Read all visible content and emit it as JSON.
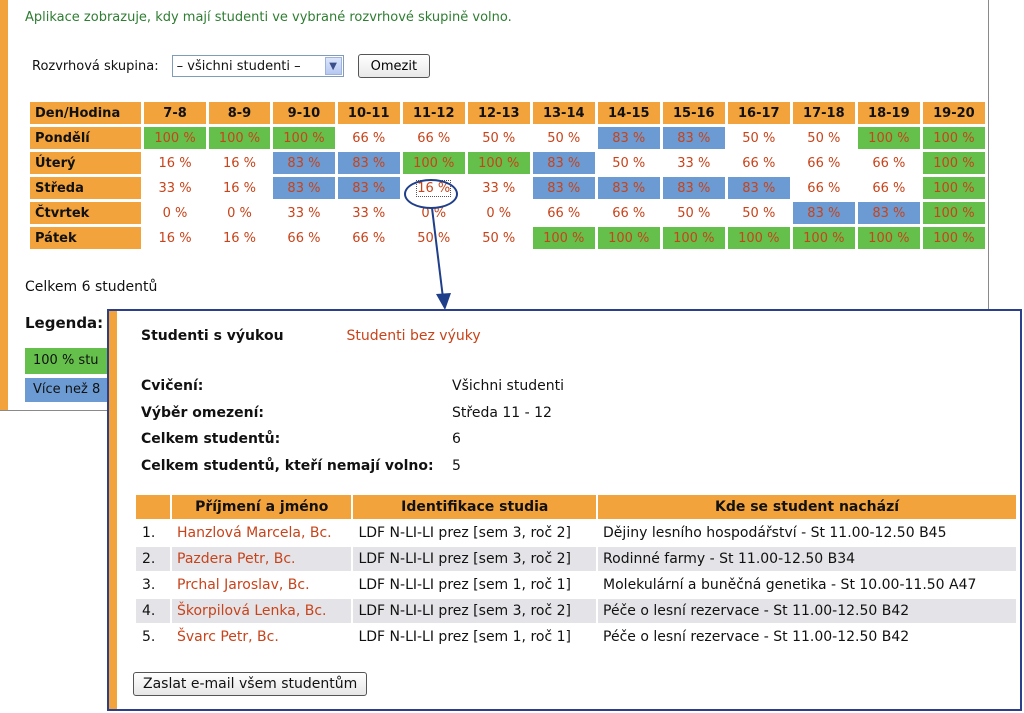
{
  "intro": "Aplikace zobrazuje, kdy mají studenti ve vybrané rozvrhové skupině volno.",
  "filter": {
    "label": "Rozvrhová skupina:",
    "selected": "– všichni studenti –",
    "button": "Omezit"
  },
  "grid": {
    "header_first": "Den/Hodina",
    "hours": [
      "7-8",
      "8-9",
      "9-10",
      "10-11",
      "11-12",
      "12-13",
      "13-14",
      "14-15",
      "15-16",
      "16-17",
      "17-18",
      "18-19",
      "19-20"
    ],
    "days": [
      {
        "name": "Pondělí",
        "cells": [
          {
            "v": "100 %",
            "c": "g"
          },
          {
            "v": "100 %",
            "c": "g"
          },
          {
            "v": "100 %",
            "c": "g"
          },
          {
            "v": "66 %",
            "c": ""
          },
          {
            "v": "66 %",
            "c": ""
          },
          {
            "v": "50 %",
            "c": ""
          },
          {
            "v": "50 %",
            "c": ""
          },
          {
            "v": "83 %",
            "c": "b"
          },
          {
            "v": "83 %",
            "c": "b"
          },
          {
            "v": "50 %",
            "c": ""
          },
          {
            "v": "50 %",
            "c": ""
          },
          {
            "v": "100 %",
            "c": "g"
          },
          {
            "v": "100 %",
            "c": "g"
          }
        ]
      },
      {
        "name": "Úterý",
        "cells": [
          {
            "v": "16 %",
            "c": ""
          },
          {
            "v": "16 %",
            "c": ""
          },
          {
            "v": "83 %",
            "c": "b"
          },
          {
            "v": "83 %",
            "c": "b"
          },
          {
            "v": "100 %",
            "c": "g"
          },
          {
            "v": "100 %",
            "c": "g"
          },
          {
            "v": "83 %",
            "c": "b"
          },
          {
            "v": "50 %",
            "c": ""
          },
          {
            "v": "33 %",
            "c": ""
          },
          {
            "v": "66 %",
            "c": ""
          },
          {
            "v": "66 %",
            "c": ""
          },
          {
            "v": "66 %",
            "c": ""
          },
          {
            "v": "100 %",
            "c": "g"
          }
        ]
      },
      {
        "name": "Středa",
        "cells": [
          {
            "v": "33 %",
            "c": ""
          },
          {
            "v": "16 %",
            "c": ""
          },
          {
            "v": "83 %",
            "c": "b"
          },
          {
            "v": "83 %",
            "c": "b"
          },
          {
            "v": "16 %",
            "c": "sel"
          },
          {
            "v": "33 %",
            "c": ""
          },
          {
            "v": "83 %",
            "c": "b"
          },
          {
            "v": "83 %",
            "c": "b"
          },
          {
            "v": "83 %",
            "c": "b"
          },
          {
            "v": "83 %",
            "c": "b"
          },
          {
            "v": "66 %",
            "c": ""
          },
          {
            "v": "66 %",
            "c": ""
          },
          {
            "v": "100 %",
            "c": "g"
          }
        ]
      },
      {
        "name": "Čtvrtek",
        "cells": [
          {
            "v": "0 %",
            "c": ""
          },
          {
            "v": "0 %",
            "c": ""
          },
          {
            "v": "33 %",
            "c": ""
          },
          {
            "v": "33 %",
            "c": ""
          },
          {
            "v": "0 %",
            "c": ""
          },
          {
            "v": "0 %",
            "c": ""
          },
          {
            "v": "66 %",
            "c": ""
          },
          {
            "v": "66 %",
            "c": ""
          },
          {
            "v": "50 %",
            "c": ""
          },
          {
            "v": "50 %",
            "c": ""
          },
          {
            "v": "83 %",
            "c": "b"
          },
          {
            "v": "83 %",
            "c": "b"
          },
          {
            "v": "100 %",
            "c": "g"
          }
        ]
      },
      {
        "name": "Pátek",
        "cells": [
          {
            "v": "16 %",
            "c": ""
          },
          {
            "v": "16 %",
            "c": ""
          },
          {
            "v": "66 %",
            "c": ""
          },
          {
            "v": "66 %",
            "c": ""
          },
          {
            "v": "50 %",
            "c": ""
          },
          {
            "v": "50 %",
            "c": ""
          },
          {
            "v": "100 %",
            "c": "g"
          },
          {
            "v": "100 %",
            "c": "g"
          },
          {
            "v": "100 %",
            "c": "g"
          },
          {
            "v": "100 %",
            "c": "g"
          },
          {
            "v": "100 %",
            "c": "g"
          },
          {
            "v": "100 %",
            "c": "g"
          },
          {
            "v": "100 %",
            "c": "g"
          }
        ]
      }
    ]
  },
  "total": "Celkem 6 studentů",
  "legend": {
    "title": "Legenda:",
    "item1": "100 % stu",
    "item2": "Více než 8"
  },
  "popup": {
    "tab_active": "Studenti s výukou",
    "tab_link": "Studenti bez výuky",
    "info": [
      {
        "k": "Cvičení:",
        "v": "Všichni studenti"
      },
      {
        "k": "Výběr omezení:",
        "v": "Středa 11 - 12"
      },
      {
        "k": "Celkem studentů:",
        "v": "6"
      },
      {
        "k": "Celkem studentů, kteří nemají volno:",
        "v": "5"
      }
    ],
    "columns": [
      "",
      "Příjmení a jméno",
      "Identifikace studia",
      "Kde se student nachází"
    ],
    "rows": [
      {
        "n": "1.",
        "name": "Hanzlová Marcela, Bc.",
        "id": "LDF N-LI-LI prez [sem 3, roč 2]",
        "where": "Dějiny lesního hospodářství - St 11.00-12.50 B45"
      },
      {
        "n": "2.",
        "name": "Pazdera Petr, Bc.",
        "id": "LDF N-LI-LI prez [sem 3, roč 2]",
        "where": "Rodinné farmy - St 11.00-12.50 B34"
      },
      {
        "n": "3.",
        "name": "Prchal Jaroslav, Bc.",
        "id": "LDF N-LI-LI prez [sem 1, roč 1]",
        "where": "Molekulární a buněčná genetika - St 10.00-11.50 A47"
      },
      {
        "n": "4.",
        "name": "Škorpilová Lenka, Bc.",
        "id": "LDF N-LI-LI prez [sem 3, roč 2]",
        "where": "Péče o lesní rezervace - St 11.00-12.50 B42"
      },
      {
        "n": "5.",
        "name": "Švarc Petr, Bc.",
        "id": "LDF N-LI-LI prez [sem 1, roč 1]",
        "where": "Péče o lesní rezervace - St 11.00-12.50 B42"
      }
    ],
    "mail_button": "Zaslat e-mail všem studentům"
  },
  "colors": {
    "accent": "#f3a33b",
    "green": "#64c04a",
    "blue": "#6b9bd2",
    "link": "#c8431a",
    "intro": "#2e7d32",
    "frame": "#2c3f8c"
  }
}
